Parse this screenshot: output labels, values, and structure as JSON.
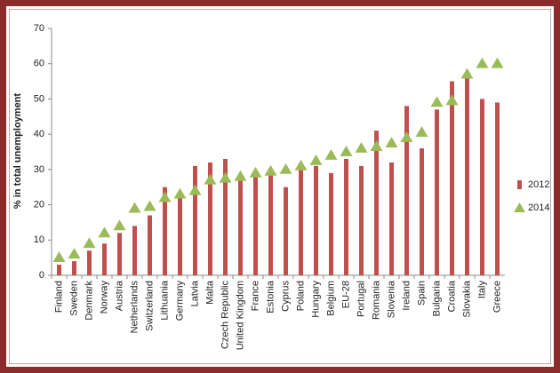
{
  "chart_data": {
    "type": "bar_marker",
    "y_label": "% in total unemployment",
    "categories": [
      "Finland",
      "Sweden",
      "Denmark",
      "Norway",
      "Austria",
      "Netherlands",
      "Switzerland",
      "Lithuania",
      "Germany",
      "Latvia",
      "Malta",
      "Czech Republic",
      "United Kingdom",
      "France",
      "Estonia",
      "Cyprus",
      "Poland",
      "Hungary",
      "Belgium",
      "EU-28",
      "Portugal",
      "Romania",
      "Slovenia",
      "Ireland",
      "Spain",
      "Bulgaria",
      "Croatia",
      "Slovakia",
      "Italy",
      "Greece"
    ],
    "series": [
      {
        "name": "2012",
        "color": "#c0504d",
        "values": [
          3,
          4,
          7,
          9,
          12,
          14,
          17,
          25,
          22,
          31,
          32,
          33,
          27,
          28,
          29,
          25,
          30,
          31,
          29,
          33,
          31,
          41,
          32,
          48,
          36,
          47,
          55,
          56,
          50,
          49
        ]
      },
      {
        "name": "2014",
        "color": "#9bbb59",
        "values": [
          5,
          6,
          9,
          12,
          14,
          19,
          19.5,
          22,
          23,
          24,
          27,
          27.5,
          28,
          29,
          29.5,
          30,
          31,
          32.5,
          34,
          35,
          36,
          36.5,
          37.5,
          39,
          40.5,
          49,
          49.5,
          57,
          60,
          60
        ]
      }
    ],
    "ylim": [
      0,
      70
    ],
    "yticks": [
      0,
      10,
      20,
      30,
      40,
      50,
      60,
      70
    ],
    "legend": "right"
  }
}
